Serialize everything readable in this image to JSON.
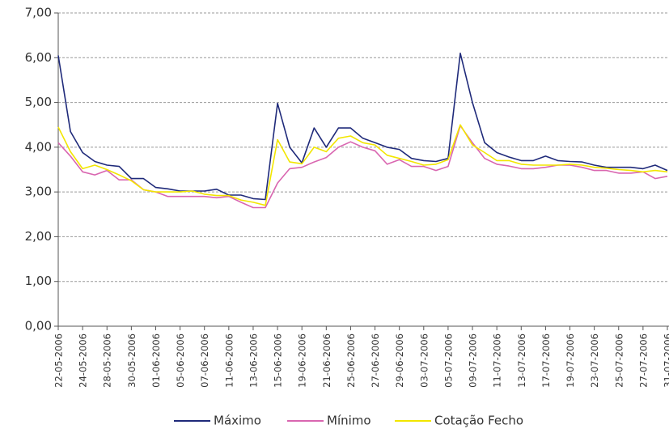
{
  "chart_data": {
    "type": "line",
    "categories": [
      "22-05-2006",
      null,
      "24-05-2006",
      null,
      "28-05-2006",
      null,
      "30-05-2006",
      null,
      "01-06-2006",
      null,
      "05-06-2006",
      null,
      "07-06-2006",
      null,
      "11-06-2006",
      null,
      "13-06-2006",
      null,
      "15-06-2006",
      null,
      "19-06-2006",
      null,
      "21-06-2006",
      null,
      "25-06-2006",
      null,
      "27-06-2006",
      null,
      "29-06-2006",
      null,
      "03-07-2006",
      null,
      "05-07-2006",
      null,
      "09-07-2006",
      null,
      "11-07-2006",
      null,
      "13-07-2006",
      null,
      "17-07-2006",
      null,
      "19-07-2006",
      null,
      "23-07-2006",
      null,
      "25-07-2006",
      null,
      "27-07-2006",
      null,
      "31-07-2006"
    ],
    "series": [
      {
        "name": "Máximo",
        "color": "#1f2a7a",
        "values": [
          6.05,
          4.35,
          3.88,
          3.68,
          3.6,
          3.57,
          3.3,
          3.3,
          3.1,
          3.07,
          3.02,
          3.02,
          3.02,
          3.06,
          2.93,
          2.93,
          2.85,
          2.83,
          4.98,
          4.0,
          3.65,
          4.43,
          4.0,
          4.43,
          4.43,
          4.2,
          4.1,
          4.0,
          3.95,
          3.75,
          3.7,
          3.68,
          3.75,
          6.1,
          5.0,
          4.1,
          3.88,
          3.78,
          3.7,
          3.7,
          3.8,
          3.7,
          3.68,
          3.67,
          3.6,
          3.55,
          3.55,
          3.55,
          3.52,
          3.6,
          3.48
        ]
      },
      {
        "name": "Mínimo",
        "color": "#d966b0",
        "values": [
          4.1,
          3.8,
          3.45,
          3.38,
          3.48,
          3.27,
          3.27,
          3.05,
          3.0,
          2.9,
          2.9,
          2.9,
          2.9,
          2.87,
          2.9,
          2.77,
          2.65,
          2.65,
          3.2,
          3.52,
          3.55,
          3.67,
          3.77,
          4.0,
          4.12,
          4.0,
          3.92,
          3.62,
          3.72,
          3.57,
          3.57,
          3.48,
          3.57,
          4.48,
          4.1,
          3.75,
          3.62,
          3.58,
          3.52,
          3.52,
          3.55,
          3.6,
          3.6,
          3.55,
          3.48,
          3.48,
          3.42,
          3.42,
          3.45,
          3.3,
          3.35
        ]
      },
      {
        "name": "Cotação Fecho",
        "color": "#f2e600",
        "values": [
          4.45,
          3.9,
          3.52,
          3.6,
          3.5,
          3.38,
          3.25,
          3.05,
          3.0,
          3.0,
          3.0,
          3.02,
          2.95,
          2.92,
          2.92,
          2.82,
          2.77,
          2.7,
          4.17,
          3.67,
          3.63,
          4.0,
          3.9,
          4.2,
          4.25,
          4.1,
          4.05,
          3.82,
          3.75,
          3.68,
          3.6,
          3.62,
          3.72,
          4.5,
          4.05,
          3.88,
          3.7,
          3.7,
          3.62,
          3.6,
          3.6,
          3.6,
          3.62,
          3.6,
          3.55,
          3.53,
          3.5,
          3.48,
          3.45,
          3.48,
          3.45
        ]
      }
    ],
    "ylim": [
      0,
      7
    ],
    "yticks": [
      {
        "value": 0,
        "label": "0,00"
      },
      {
        "value": 1,
        "label": "1,00"
      },
      {
        "value": 2,
        "label": "2,00"
      },
      {
        "value": 3,
        "label": "3,00"
      },
      {
        "value": 4,
        "label": "4,00"
      },
      {
        "value": 5,
        "label": "5,00"
      },
      {
        "value": 6,
        "label": "6,00"
      },
      {
        "value": 7,
        "label": "7,00"
      }
    ],
    "grid": true,
    "legend": "bottom"
  }
}
